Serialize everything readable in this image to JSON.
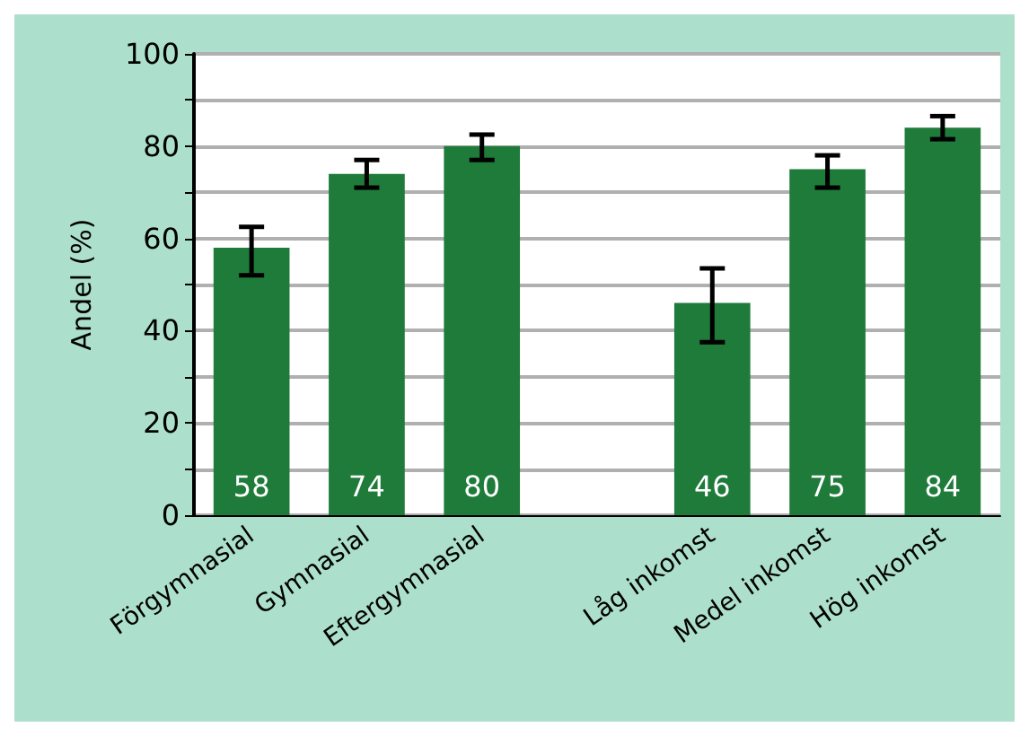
{
  "chart_data": {
    "type": "bar",
    "ylabel": "Andel (%)",
    "categories": [
      "Förgymnasial",
      "Gymnasial",
      "Eftergymnasial",
      null,
      "Låg inkomst",
      "Medel inkomst",
      "Hög inkomst"
    ],
    "values": [
      58,
      74,
      80,
      null,
      46,
      75,
      84
    ],
    "color": "#1e7b3a",
    "errors": [
      [
        52,
        62.5
      ],
      [
        71,
        77
      ],
      [
        77,
        82.5
      ],
      null,
      [
        37.5,
        53.5
      ],
      [
        71,
        78
      ],
      [
        81.5,
        86.5
      ]
    ],
    "ylim": [
      0,
      100
    ],
    "yticks": [
      0,
      {
        "value": 10,
        "label": null
      },
      20,
      {
        "value": 30,
        "label": null
      },
      40,
      {
        "value": 50,
        "label": null
      },
      60,
      {
        "value": 70,
        "label": null
      },
      80,
      {
        "value": 90,
        "label": null
      },
      100
    ],
    "grid": "y",
    "data_labels": true
  }
}
